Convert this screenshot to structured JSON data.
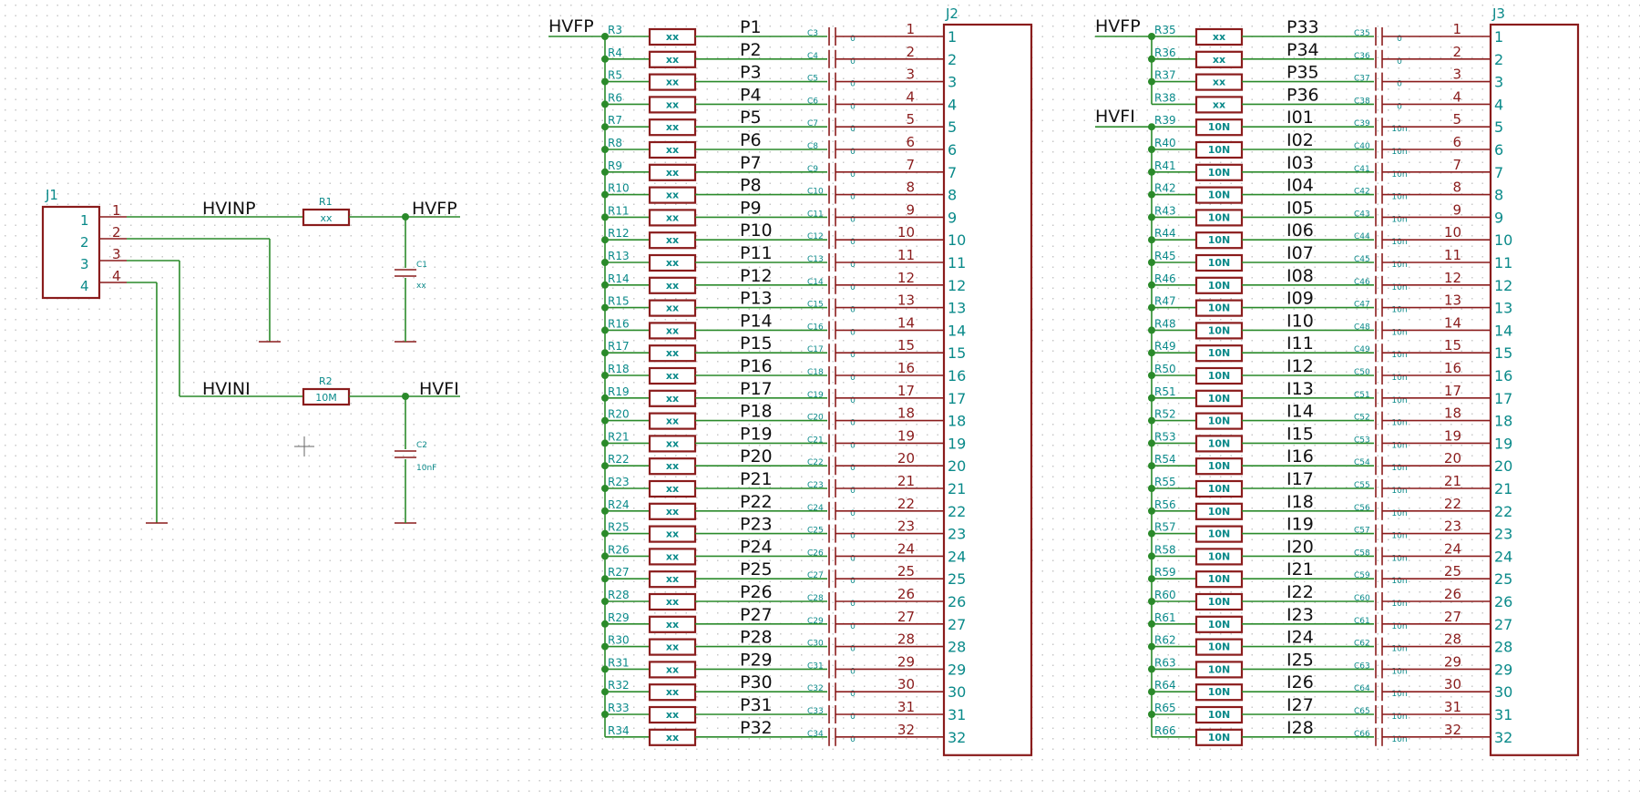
{
  "j1": {
    "ref": "J1",
    "pins": [
      "1",
      "2",
      "3",
      "4"
    ],
    "pin_labels": [
      "1",
      "2",
      "3",
      "4"
    ]
  },
  "input_stage": [
    {
      "net_in": "HVINP",
      "r_ref": "R1",
      "r_val": "xx",
      "net_out": "HVFP",
      "c_ref": "C1",
      "c_val": "xx"
    },
    {
      "net_in": "HVINI",
      "r_ref": "R2",
      "r_val": "10M",
      "net_out": "HVFI",
      "c_ref": "C2",
      "c_val": "10nF"
    }
  ],
  "j2": {
    "ref": "J2",
    "nets": [
      "HVFP"
    ],
    "rows": [
      {
        "r": "R3",
        "rv": "xx",
        "sig": "P1",
        "c": "C3",
        "cv": "0"
      },
      {
        "r": "R4",
        "rv": "xx",
        "sig": "P2",
        "c": "C4",
        "cv": "0"
      },
      {
        "r": "R5",
        "rv": "xx",
        "sig": "P3",
        "c": "C5",
        "cv": "0"
      },
      {
        "r": "R6",
        "rv": "xx",
        "sig": "P4",
        "c": "C6",
        "cv": "0"
      },
      {
        "r": "R7",
        "rv": "xx",
        "sig": "P5",
        "c": "C7",
        "cv": "0"
      },
      {
        "r": "R8",
        "rv": "xx",
        "sig": "P6",
        "c": "C8",
        "cv": "0"
      },
      {
        "r": "R9",
        "rv": "xx",
        "sig": "P7",
        "c": "C9",
        "cv": "0"
      },
      {
        "r": "R10",
        "rv": "xx",
        "sig": "P8",
        "c": "C10",
        "cv": "0"
      },
      {
        "r": "R11",
        "rv": "xx",
        "sig": "P9",
        "c": "C11",
        "cv": "0"
      },
      {
        "r": "R12",
        "rv": "xx",
        "sig": "P10",
        "c": "C12",
        "cv": "0"
      },
      {
        "r": "R13",
        "rv": "xx",
        "sig": "P11",
        "c": "C13",
        "cv": "0"
      },
      {
        "r": "R14",
        "rv": "xx",
        "sig": "P12",
        "c": "C14",
        "cv": "0"
      },
      {
        "r": "R15",
        "rv": "xx",
        "sig": "P13",
        "c": "C15",
        "cv": "0"
      },
      {
        "r": "R16",
        "rv": "xx",
        "sig": "P14",
        "c": "C16",
        "cv": "0"
      },
      {
        "r": "R17",
        "rv": "xx",
        "sig": "P15",
        "c": "C17",
        "cv": "0"
      },
      {
        "r": "R18",
        "rv": "xx",
        "sig": "P16",
        "c": "C18",
        "cv": "0"
      },
      {
        "r": "R19",
        "rv": "xx",
        "sig": "P17",
        "c": "C19",
        "cv": "0"
      },
      {
        "r": "R20",
        "rv": "xx",
        "sig": "P18",
        "c": "C20",
        "cv": "0"
      },
      {
        "r": "R21",
        "rv": "xx",
        "sig": "P19",
        "c": "C21",
        "cv": "0"
      },
      {
        "r": "R22",
        "rv": "xx",
        "sig": "P20",
        "c": "C22",
        "cv": "0"
      },
      {
        "r": "R23",
        "rv": "xx",
        "sig": "P21",
        "c": "C23",
        "cv": "0"
      },
      {
        "r": "R24",
        "rv": "xx",
        "sig": "P22",
        "c": "C24",
        "cv": "0"
      },
      {
        "r": "R25",
        "rv": "xx",
        "sig": "P23",
        "c": "C25",
        "cv": "0"
      },
      {
        "r": "R26",
        "rv": "xx",
        "sig": "P24",
        "c": "C26",
        "cv": "0"
      },
      {
        "r": "R27",
        "rv": "xx",
        "sig": "P25",
        "c": "C27",
        "cv": "0"
      },
      {
        "r": "R28",
        "rv": "xx",
        "sig": "P26",
        "c": "C28",
        "cv": "0"
      },
      {
        "r": "R29",
        "rv": "xx",
        "sig": "P27",
        "c": "C29",
        "cv": "0"
      },
      {
        "r": "R30",
        "rv": "xx",
        "sig": "P28",
        "c": "C30",
        "cv": "0"
      },
      {
        "r": "R31",
        "rv": "xx",
        "sig": "P29",
        "c": "C31",
        "cv": "0"
      },
      {
        "r": "R32",
        "rv": "xx",
        "sig": "P30",
        "c": "C32",
        "cv": "0"
      },
      {
        "r": "R33",
        "rv": "xx",
        "sig": "P31",
        "c": "C33",
        "cv": "0"
      },
      {
        "r": "R34",
        "rv": "xx",
        "sig": "P32",
        "c": "C34",
        "cv": "0"
      }
    ]
  },
  "j3": {
    "ref": "J3",
    "nets": [
      "HVFP",
      "HVFI"
    ],
    "rows": [
      {
        "r": "R35",
        "rv": "xx",
        "sig": "P33",
        "c": "C35",
        "cv": "0"
      },
      {
        "r": "R36",
        "rv": "xx",
        "sig": "P34",
        "c": "C36",
        "cv": "0"
      },
      {
        "r": "R37",
        "rv": "xx",
        "sig": "P35",
        "c": "C37",
        "cv": "0"
      },
      {
        "r": "R38",
        "rv": "xx",
        "sig": "P36",
        "c": "C38",
        "cv": "0"
      },
      {
        "r": "R39",
        "rv": "10N",
        "sig": "I01",
        "c": "C39",
        "cv": "10n"
      },
      {
        "r": "R40",
        "rv": "10N",
        "sig": "I02",
        "c": "C40",
        "cv": "10n"
      },
      {
        "r": "R41",
        "rv": "10N",
        "sig": "I03",
        "c": "C41",
        "cv": "10n"
      },
      {
        "r": "R42",
        "rv": "10N",
        "sig": "I04",
        "c": "C42",
        "cv": "10n"
      },
      {
        "r": "R43",
        "rv": "10N",
        "sig": "I05",
        "c": "C43",
        "cv": "10n"
      },
      {
        "r": "R44",
        "rv": "10N",
        "sig": "I06",
        "c": "C44",
        "cv": "10n"
      },
      {
        "r": "R45",
        "rv": "10N",
        "sig": "I07",
        "c": "C45",
        "cv": "10n"
      },
      {
        "r": "R46",
        "rv": "10N",
        "sig": "I08",
        "c": "C46",
        "cv": "10n"
      },
      {
        "r": "R47",
        "rv": "10N",
        "sig": "I09",
        "c": "C47",
        "cv": "10n"
      },
      {
        "r": "R48",
        "rv": "10N",
        "sig": "I10",
        "c": "C48",
        "cv": "10n"
      },
      {
        "r": "R49",
        "rv": "10N",
        "sig": "I11",
        "c": "C49",
        "cv": "10n"
      },
      {
        "r": "R50",
        "rv": "10N",
        "sig": "I12",
        "c": "C50",
        "cv": "10n"
      },
      {
        "r": "R51",
        "rv": "10N",
        "sig": "I13",
        "c": "C51",
        "cv": "10n"
      },
      {
        "r": "R52",
        "rv": "10N",
        "sig": "I14",
        "c": "C52",
        "cv": "10n"
      },
      {
        "r": "R53",
        "rv": "10N",
        "sig": "I15",
        "c": "C53",
        "cv": "10n"
      },
      {
        "r": "R54",
        "rv": "10N",
        "sig": "I16",
        "c": "C54",
        "cv": "10n"
      },
      {
        "r": "R55",
        "rv": "10N",
        "sig": "I17",
        "c": "C55",
        "cv": "10n"
      },
      {
        "r": "R56",
        "rv": "10N",
        "sig": "I18",
        "c": "C56",
        "cv": "10n"
      },
      {
        "r": "R57",
        "rv": "10N",
        "sig": "I19",
        "c": "C57",
        "cv": "10n"
      },
      {
        "r": "R58",
        "rv": "10N",
        "sig": "I20",
        "c": "C58",
        "cv": "10n"
      },
      {
        "r": "R59",
        "rv": "10N",
        "sig": "I21",
        "c": "C59",
        "cv": "10n"
      },
      {
        "r": "R60",
        "rv": "10N",
        "sig": "I22",
        "c": "C60",
        "cv": "10n"
      },
      {
        "r": "R61",
        "rv": "10N",
        "sig": "I23",
        "c": "C61",
        "cv": "10n"
      },
      {
        "r": "R62",
        "rv": "10N",
        "sig": "I24",
        "c": "C62",
        "cv": "10n"
      },
      {
        "r": "R63",
        "rv": "10N",
        "sig": "I25",
        "c": "C63",
        "cv": "10n"
      },
      {
        "r": "R64",
        "rv": "10N",
        "sig": "I26",
        "c": "C64",
        "cv": "10n"
      },
      {
        "r": "R65",
        "rv": "10N",
        "sig": "I27",
        "c": "C65",
        "cv": "10n"
      },
      {
        "r": "R66",
        "rv": "10N",
        "sig": "I28",
        "c": "C66",
        "cv": "10n"
      }
    ]
  },
  "colors": {
    "wire": "#2a8a2a",
    "component": "#8a1c1c",
    "pin_number": "#0a8a8a",
    "net_label": "#111111",
    "grid_dot": "#c8c8c8"
  }
}
